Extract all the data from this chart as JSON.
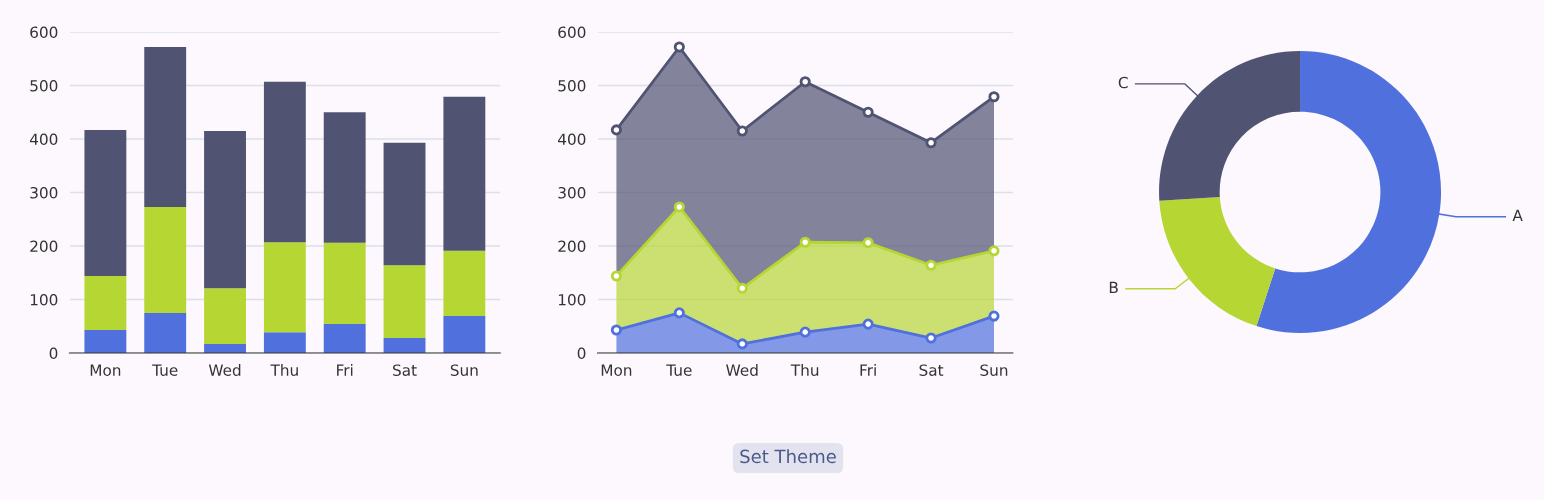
{
  "chart_data": [
    {
      "type": "bar",
      "stacked": true,
      "categories": [
        "Mon",
        "Tue",
        "Wed",
        "Thu",
        "Fri",
        "Sat",
        "Sun"
      ],
      "ylim": [
        0,
        600
      ],
      "yticks": [
        0,
        100,
        200,
        300,
        400,
        500,
        600
      ],
      "grid": "y",
      "series": [
        {
          "color": "#5070dd",
          "values": [
            43,
            75,
            17,
            39,
            54,
            28,
            69
          ]
        },
        {
          "color": "#b6d634",
          "values": [
            101,
            198,
            104,
            168,
            152,
            136,
            122
          ]
        },
        {
          "color": "#505372",
          "values": [
            273,
            299,
            294,
            300,
            244,
            229,
            288
          ]
        }
      ]
    },
    {
      "type": "area",
      "stacked": true,
      "categories": [
        "Mon",
        "Tue",
        "Wed",
        "Thu",
        "Fri",
        "Sat",
        "Sun"
      ],
      "ylim": [
        0,
        600
      ],
      "yticks": [
        0,
        100,
        200,
        300,
        400,
        500,
        600
      ],
      "grid": "y",
      "marker": "circle",
      "line_style": "solid",
      "annotations": [
        "Set Theme"
      ],
      "series": [
        {
          "color": "#5070dd",
          "values": [
            43,
            75,
            17,
            39,
            54,
            28,
            69
          ]
        },
        {
          "color": "#b6d634",
          "values": [
            101,
            198,
            104,
            168,
            152,
            136,
            122
          ]
        },
        {
          "color": "#505372",
          "values": [
            273,
            299,
            294,
            300,
            244,
            229,
            288
          ]
        }
      ]
    },
    {
      "type": "donut",
      "categories": [
        "A",
        "B",
        "C"
      ],
      "values": [
        55,
        19,
        26
      ],
      "colors": [
        "#5070dd",
        "#b6d634",
        "#505372"
      ]
    }
  ]
}
